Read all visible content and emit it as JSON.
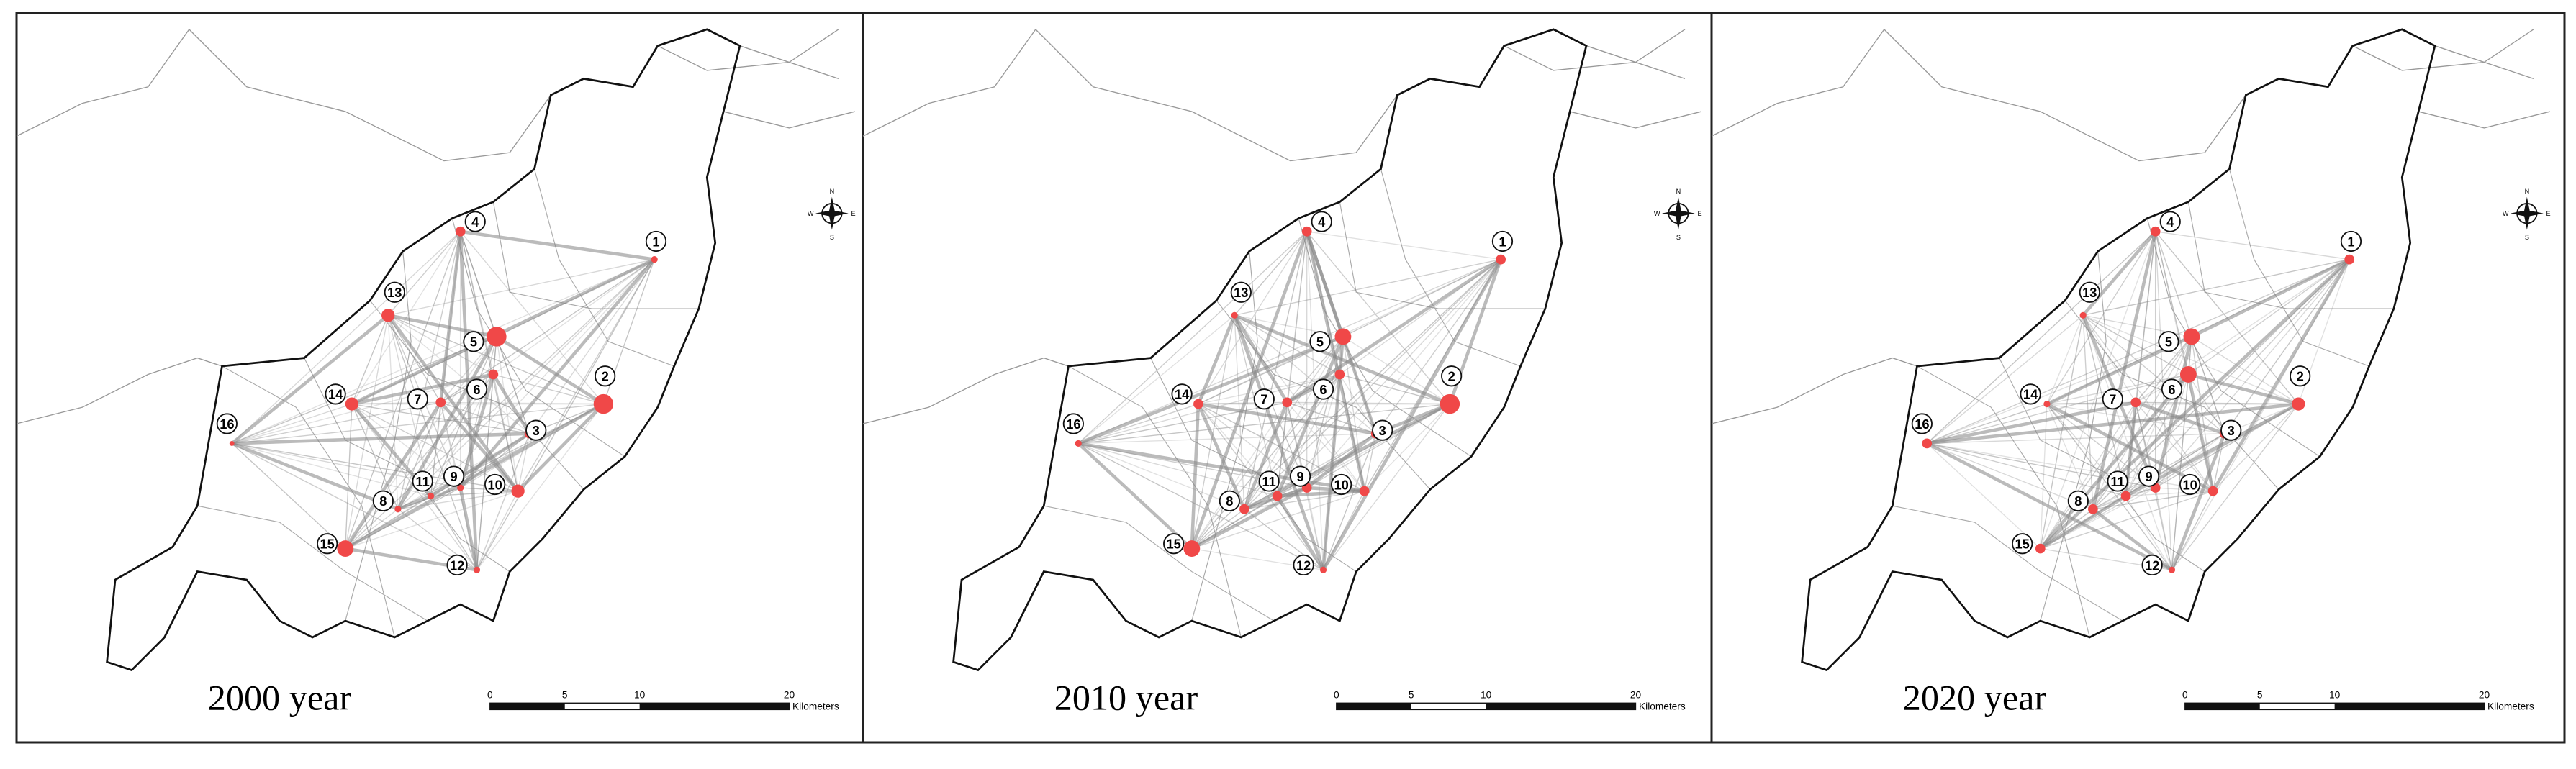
{
  "panels": [
    {
      "label": "2000 year"
    },
    {
      "label": "2010 year"
    },
    {
      "label": "2020 year"
    }
  ],
  "nodes": [
    "1",
    "2",
    "3",
    "4",
    "5",
    "6",
    "7",
    "8",
    "9",
    "10",
    "11",
    "12",
    "13",
    "14",
    "15",
    "16"
  ],
  "scale_bar": {
    "ticks": [
      "0",
      "5",
      "10",
      "20"
    ],
    "unit": "Kilometers"
  },
  "compass": {
    "n": "N",
    "e": "E",
    "s": "S",
    "w": "W"
  }
}
